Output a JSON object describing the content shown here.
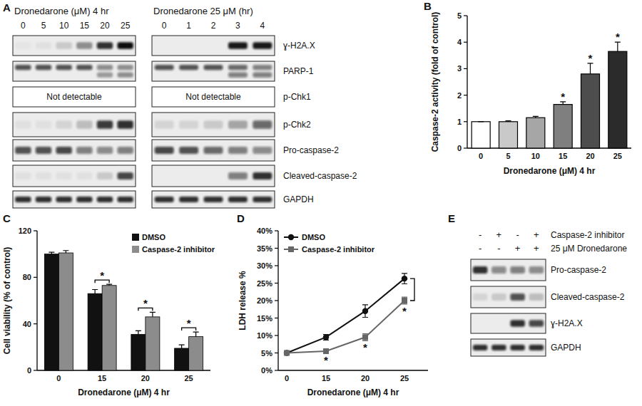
{
  "panel_labels": [
    "A",
    "B",
    "C",
    "D",
    "E"
  ],
  "blots": [
    {
      "groups": [
        {
          "title": "Dronedarone (μM) 4 hr",
          "lanes": [
            "0",
            "5",
            "10",
            "15",
            "20",
            "25"
          ]
        },
        {
          "title": "Dronedarone 25 μM (hr)",
          "lanes": [
            "0",
            "1",
            "2",
            "3",
            "4"
          ]
        }
      ],
      "rows": [
        {
          "label": "ɣ-H2A.X",
          "intensity": [
            [
              0.03,
              0.05,
              0.15,
              0.4,
              0.85,
              1
            ],
            [
              0,
              0,
              0,
              0.95,
              0.95
            ]
          ]
        },
        {
          "label": "PARP-1",
          "intensity": [
            [
              0.7,
              0.7,
              0.7,
              0.7,
              0.45,
              0.4
            ],
            [
              0.7,
              0.7,
              0.7,
              0.6,
              0.5
            ]
          ],
          "lower_band": [
            [
              0,
              0,
              0,
              0,
              0.35,
              0.4
            ],
            [
              0,
              0,
              0,
              0.5,
              0.5
            ]
          ]
        },
        {
          "label": "p-Chk1",
          "note": [
            "Not detectable",
            "Not detectable"
          ]
        },
        {
          "label": "p-Chk2",
          "intensity": [
            [
              0.05,
              0.05,
              0.1,
              0.2,
              0.8,
              0.85
            ],
            [
              0.1,
              0.1,
              0.15,
              0.3,
              0.6
            ]
          ]
        },
        {
          "label": "Pro-caspase-2",
          "intensity": [
            [
              0.7,
              0.7,
              0.75,
              0.5,
              0.45,
              0.5
            ],
            [
              0.75,
              0.7,
              0.6,
              0.5,
              0.45
            ]
          ]
        },
        {
          "label": "Cleaved-caspase-2",
          "intensity": [
            [
              0.05,
              0.05,
              0.05,
              0.05,
              0.15,
              0.75
            ],
            [
              0,
              0,
              0,
              0.5,
              0.85
            ]
          ]
        },
        {
          "label": "GAPDH",
          "intensity": [
            [
              0.85,
              0.85,
              0.85,
              0.85,
              0.85,
              0.85
            ],
            [
              0.85,
              0.85,
              0.85,
              0.85,
              0.85
            ]
          ]
        }
      ]
    },
    {
      "conditions": [
        {
          "label": "Caspase-2 inhibitor",
          "signs": [
            "-",
            "+",
            "-",
            "+"
          ]
        },
        {
          "label": "25 μM Dronedarone",
          "signs": [
            "-",
            "-",
            "+",
            "+"
          ]
        }
      ],
      "rows": [
        {
          "label": "Pro-caspase-2",
          "intensity": [
            0.85,
            0.45,
            0.5,
            0.45
          ]
        },
        {
          "label": "Cleaved-caspase-2",
          "intensity": [
            0.1,
            0.15,
            0.7,
            0.2
          ]
        },
        {
          "label": "ɣ-H2A.X",
          "intensity": [
            0,
            0,
            0.85,
            0.75
          ]
        },
        {
          "label": "GAPDH",
          "intensity": [
            0.85,
            0.85,
            0.85,
            0.85
          ]
        }
      ]
    }
  ],
  "chart_data": [
    {
      "type": "bar",
      "categories": [
        "0",
        "5",
        "10",
        "15",
        "20",
        "25"
      ],
      "values": [
        1,
        1,
        1.15,
        1.65,
        2.8,
        3.65
      ],
      "errors": [
        0,
        0.03,
        0.05,
        0.1,
        0.4,
        0.35
      ],
      "colors": [
        "#ffffff",
        "#c9c9c9",
        "#a6a6a6",
        "#7f7f7f",
        "#4d4d4d",
        "#2b2b2b"
      ],
      "ylim": [
        0,
        5
      ],
      "yticks": [
        0,
        1,
        2,
        3,
        4,
        5
      ],
      "ylabel": "Caspase-2 activity (fold of control)",
      "xlabel": "Dronedarone (μM) 4 hr",
      "annotations": [
        {
          "text": "*",
          "category": "15"
        },
        {
          "text": "*",
          "category": "20"
        },
        {
          "text": "*",
          "category": "25"
        }
      ]
    },
    {
      "type": "bar",
      "categories": [
        "0",
        "15",
        "20",
        "25"
      ],
      "series": [
        {
          "name": "DMSO",
          "color": "#111111",
          "values": [
            100,
            66,
            31,
            19
          ],
          "errors": [
            1.5,
            3.5,
            3,
            3
          ]
        },
        {
          "name": "Caspase-2 inhibitor",
          "color": "#8c8c8c",
          "values": [
            101,
            73,
            46,
            29
          ],
          "errors": [
            2,
            1,
            4,
            4
          ]
        }
      ],
      "ylim": [
        0,
        120
      ],
      "yticks": [
        0,
        40,
        80,
        120
      ],
      "ylabel": "Cell viability (% of control)",
      "xlabel": "Dronedarone (μM) 4 hr",
      "legend": "top-right",
      "annotations": [
        {
          "text": "*",
          "category": "15"
        },
        {
          "text": "*",
          "category": "20"
        },
        {
          "text": "*",
          "category": "25"
        }
      ]
    },
    {
      "type": "line",
      "categories": [
        "0",
        "15",
        "20",
        "25"
      ],
      "series": [
        {
          "name": "DMSO",
          "color": "#111111",
          "marker": "circle",
          "values": [
            5,
            9.5,
            17,
            26.3
          ],
          "errors": [
            0.3,
            0.8,
            1.8,
            1.5
          ]
        },
        {
          "name": "Caspase-2 inhibitor",
          "color": "#666666",
          "marker": "square",
          "values": [
            5,
            5.5,
            9.5,
            20
          ],
          "errors": [
            0.3,
            0.5,
            1,
            1
          ]
        }
      ],
      "ylim": [
        0,
        40
      ],
      "yticks": [
        {
          "value": 0,
          "label": "0%"
        },
        {
          "value": 5,
          "label": "5%"
        },
        {
          "value": 10,
          "label": "10%"
        },
        {
          "value": 15,
          "label": "15%"
        },
        {
          "value": 20,
          "label": "20%"
        },
        {
          "value": 25,
          "label": "25%"
        },
        {
          "value": 30,
          "label": "30%"
        },
        {
          "value": 35,
          "label": "35%"
        },
        {
          "value": 40,
          "label": "40%"
        }
      ],
      "ylabel": "LDH release %",
      "xlabel": "Dronedarone (μM) 4 hr",
      "legend": "top-left",
      "annotations": [
        {
          "text": "*",
          "category": "15",
          "series": "Caspase-2 inhibitor"
        },
        {
          "text": "*",
          "category": "20",
          "series": "Caspase-2 inhibitor"
        },
        {
          "text": "*",
          "category": "25",
          "series": "Caspase-2 inhibitor"
        }
      ]
    }
  ]
}
